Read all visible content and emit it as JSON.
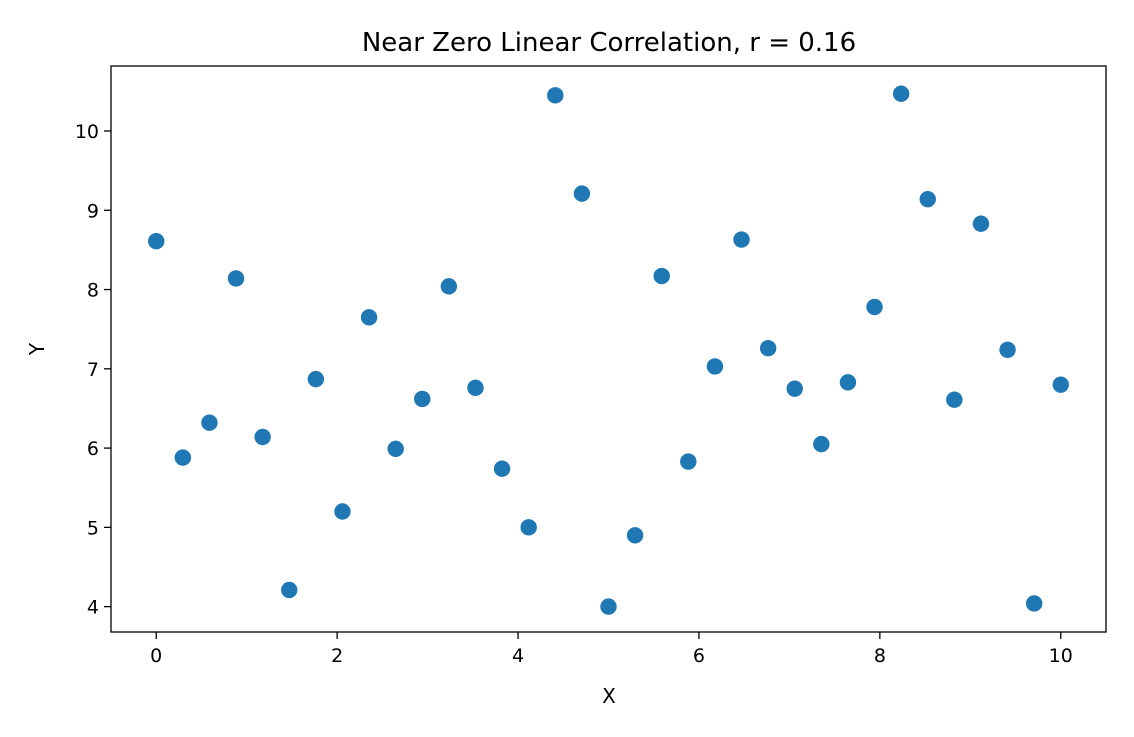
{
  "chart_data": {
    "type": "scatter",
    "title": "Near Zero Linear Correlation, r = 0.16",
    "xlabel": "X",
    "ylabel": "Y",
    "xlim": [
      -0.5,
      10.5
    ],
    "ylim": [
      3.68,
      10.82
    ],
    "xticks": [
      0,
      2,
      4,
      6,
      8,
      10
    ],
    "yticks": [
      4,
      5,
      6,
      7,
      8,
      9,
      10
    ],
    "grid": false,
    "marker_color": "#1f77b4",
    "series": [
      {
        "x": [
          0.0,
          0.2941,
          0.5882,
          0.8824,
          1.1765,
          1.4706,
          1.7647,
          2.0588,
          2.3529,
          2.6471,
          2.9412,
          3.2353,
          3.5294,
          3.8235,
          4.1176,
          4.4118,
          4.7059,
          5.0,
          5.2941,
          5.5882,
          5.8824,
          6.1765,
          6.4706,
          6.7647,
          7.0588,
          7.3529,
          7.6471,
          7.9412,
          8.2353,
          8.5294,
          8.8235,
          9.1176,
          9.4118,
          9.7059,
          10.0
        ],
        "y": [
          8.61,
          5.88,
          6.32,
          8.14,
          6.14,
          4.21,
          6.87,
          5.2,
          7.65,
          5.99,
          6.62,
          8.04,
          6.76,
          5.74,
          5.0,
          10.45,
          9.21,
          4.0,
          4.9,
          8.17,
          5.83,
          7.03,
          8.63,
          7.26,
          6.75,
          6.05,
          6.83,
          7.78,
          10.47,
          9.14,
          6.61,
          8.83,
          7.24,
          4.04,
          6.8
        ]
      }
    ]
  }
}
